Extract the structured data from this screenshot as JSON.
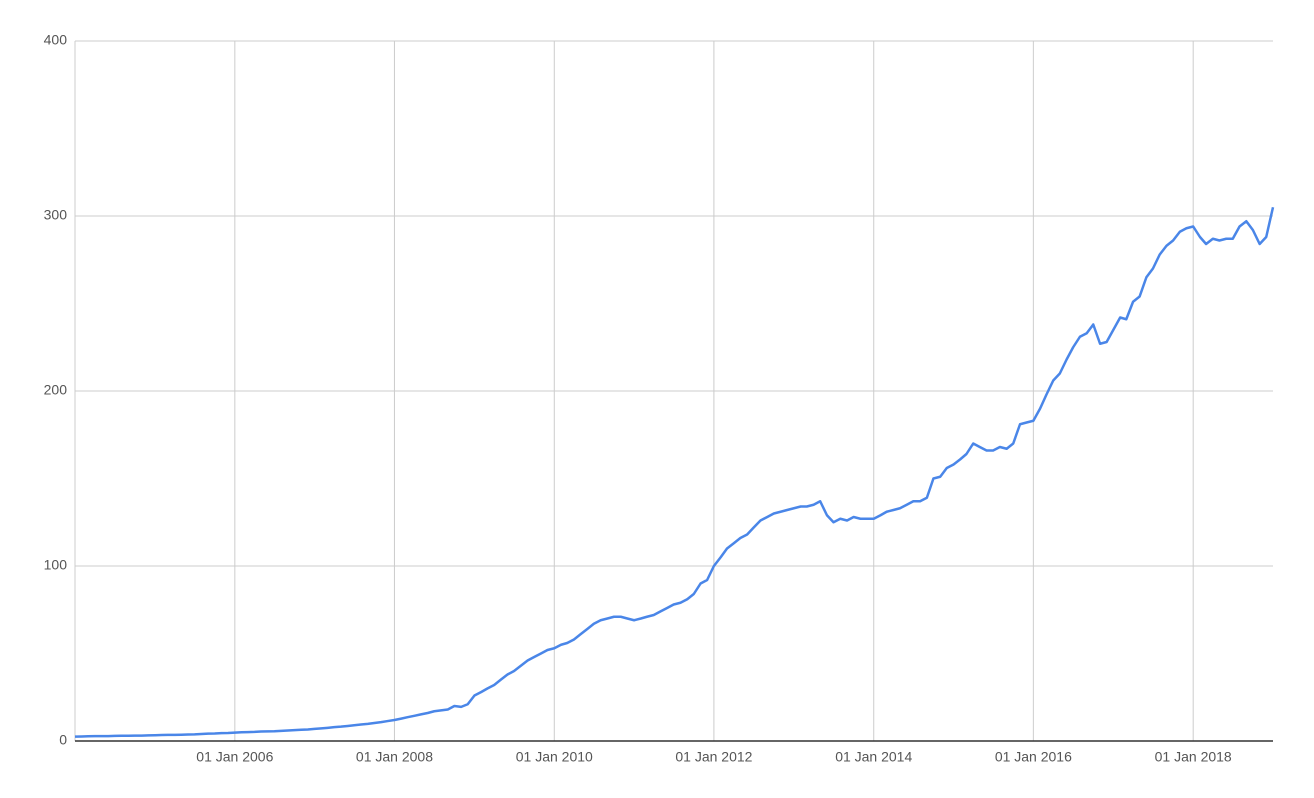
{
  "chart_data": {
    "type": "line",
    "color": "#4a86e8",
    "grid": true,
    "ylim": [
      0,
      400
    ],
    "yticks": [
      0,
      100,
      200,
      300,
      400
    ],
    "xlim": [
      "2004-01-01",
      "2019-01-01"
    ],
    "xticks": [
      {
        "value": "2006-01-01",
        "label": "01 Jan 2006"
      },
      {
        "value": "2008-01-01",
        "label": "01 Jan 2008"
      },
      {
        "value": "2010-01-01",
        "label": "01 Jan 2010"
      },
      {
        "value": "2012-01-01",
        "label": "01 Jan 2012"
      },
      {
        "value": "2014-01-01",
        "label": "01 Jan 2014"
      },
      {
        "value": "2016-01-01",
        "label": "01 Jan 2016"
      },
      {
        "value": "2018-01-01",
        "label": "01 Jan 2018"
      }
    ],
    "x": [
      "2004-01-01",
      "2004-02-01",
      "2004-03-01",
      "2004-04-01",
      "2004-05-01",
      "2004-06-01",
      "2004-07-01",
      "2004-08-01",
      "2004-09-01",
      "2004-10-01",
      "2004-11-01",
      "2004-12-01",
      "2005-01-01",
      "2005-02-01",
      "2005-03-01",
      "2005-04-01",
      "2005-05-01",
      "2005-06-01",
      "2005-07-01",
      "2005-08-01",
      "2005-09-01",
      "2005-10-01",
      "2005-11-01",
      "2005-12-01",
      "2006-01-01",
      "2006-02-01",
      "2006-03-01",
      "2006-04-01",
      "2006-05-01",
      "2006-06-01",
      "2006-07-01",
      "2006-08-01",
      "2006-09-01",
      "2006-10-01",
      "2006-11-01",
      "2006-12-01",
      "2007-01-01",
      "2007-02-01",
      "2007-03-01",
      "2007-04-01",
      "2007-05-01",
      "2007-06-01",
      "2007-07-01",
      "2007-08-01",
      "2007-09-01",
      "2007-10-01",
      "2007-11-01",
      "2007-12-01",
      "2008-01-01",
      "2008-02-01",
      "2008-03-01",
      "2008-04-01",
      "2008-05-01",
      "2008-06-01",
      "2008-07-01",
      "2008-08-01",
      "2008-09-01",
      "2008-10-01",
      "2008-11-01",
      "2008-12-01",
      "2009-01-01",
      "2009-02-01",
      "2009-03-01",
      "2009-04-01",
      "2009-05-01",
      "2009-06-01",
      "2009-07-01",
      "2009-08-01",
      "2009-09-01",
      "2009-10-01",
      "2009-11-01",
      "2009-12-01",
      "2010-01-01",
      "2010-02-01",
      "2010-03-01",
      "2010-04-01",
      "2010-05-01",
      "2010-06-01",
      "2010-07-01",
      "2010-08-01",
      "2010-09-01",
      "2010-10-01",
      "2010-11-01",
      "2010-12-01",
      "2011-01-01",
      "2011-02-01",
      "2011-03-01",
      "2011-04-01",
      "2011-05-01",
      "2011-06-01",
      "2011-07-01",
      "2011-08-01",
      "2011-09-01",
      "2011-10-01",
      "2011-11-01",
      "2011-12-01",
      "2012-01-01",
      "2012-02-01",
      "2012-03-01",
      "2012-04-01",
      "2012-05-01",
      "2012-06-01",
      "2012-07-01",
      "2012-08-01",
      "2012-09-01",
      "2012-10-01",
      "2012-11-01",
      "2012-12-01",
      "2013-01-01",
      "2013-02-01",
      "2013-03-01",
      "2013-04-01",
      "2013-05-01",
      "2013-06-01",
      "2013-07-01",
      "2013-08-01",
      "2013-09-01",
      "2013-10-01",
      "2013-11-01",
      "2013-12-01",
      "2014-01-01",
      "2014-02-01",
      "2014-03-01",
      "2014-04-01",
      "2014-05-01",
      "2014-06-01",
      "2014-07-01",
      "2014-08-01",
      "2014-09-01",
      "2014-10-01",
      "2014-11-01",
      "2014-12-01",
      "2015-01-01",
      "2015-02-01",
      "2015-03-01",
      "2015-04-01",
      "2015-05-01",
      "2015-06-01",
      "2015-07-01",
      "2015-08-01",
      "2015-09-01",
      "2015-10-01",
      "2015-11-01",
      "2015-12-01",
      "2016-01-01",
      "2016-02-01",
      "2016-03-01",
      "2016-04-01",
      "2016-05-01",
      "2016-06-01",
      "2016-07-01",
      "2016-08-01",
      "2016-09-01",
      "2016-10-01",
      "2016-11-01",
      "2016-12-01",
      "2017-01-01",
      "2017-02-01",
      "2017-03-01",
      "2017-04-01",
      "2017-05-01",
      "2017-06-01",
      "2017-07-01",
      "2017-08-01",
      "2017-09-01",
      "2017-10-01",
      "2017-11-01",
      "2017-12-01",
      "2018-01-01",
      "2018-02-01",
      "2018-03-01",
      "2018-04-01",
      "2018-05-01",
      "2018-06-01",
      "2018-07-01",
      "2018-08-01",
      "2018-09-01",
      "2018-10-01",
      "2018-11-01",
      "2018-12-01",
      "2019-01-01"
    ],
    "values": [
      2.5,
      2.6,
      2.7,
      2.8,
      2.8,
      2.8,
      2.9,
      3,
      3,
      3.1,
      3.1,
      3.2,
      3.3,
      3.4,
      3.5,
      3.5,
      3.6,
      3.7,
      3.8,
      4,
      4.2,
      4.3,
      4.5,
      4.6,
      4.8,
      5,
      5.1,
      5.2,
      5.4,
      5.5,
      5.6,
      5.8,
      6,
      6.2,
      6.4,
      6.6,
      6.9,
      7.2,
      7.5,
      7.9,
      8.2,
      8.6,
      9,
      9.4,
      9.8,
      10.3,
      10.8,
      11.4,
      12,
      12.8,
      13.6,
      14.4,
      15.2,
      16,
      17,
      17.5,
      18,
      20,
      19.5,
      21,
      26,
      28,
      30,
      32,
      35,
      38,
      40,
      43,
      46,
      48,
      50,
      52,
      53,
      55,
      56,
      58,
      61,
      64,
      67,
      69,
      70,
      71,
      71,
      70,
      69,
      70,
      71,
      72,
      74,
      76,
      78,
      79,
      81,
      84,
      90,
      92,
      100,
      105,
      110,
      113,
      116,
      118,
      122,
      126,
      128,
      130,
      131,
      132,
      133,
      134,
      134,
      135,
      137,
      129,
      125,
      127,
      126,
      128,
      127,
      127,
      127,
      129,
      131,
      132,
      133,
      135,
      137,
      137,
      139,
      150,
      151,
      156,
      158,
      161,
      164,
      170,
      168,
      166,
      166,
      168,
      167,
      170,
      181,
      182,
      183,
      190,
      198,
      206,
      210,
      218,
      225,
      231,
      233,
      238,
      227,
      228,
      235,
      242,
      241,
      251,
      254,
      265,
      270,
      278,
      283,
      286,
      291,
      293,
      294,
      288,
      284,
      287,
      286,
      287,
      287,
      294,
      297,
      292,
      284,
      288,
      305
    ]
  }
}
